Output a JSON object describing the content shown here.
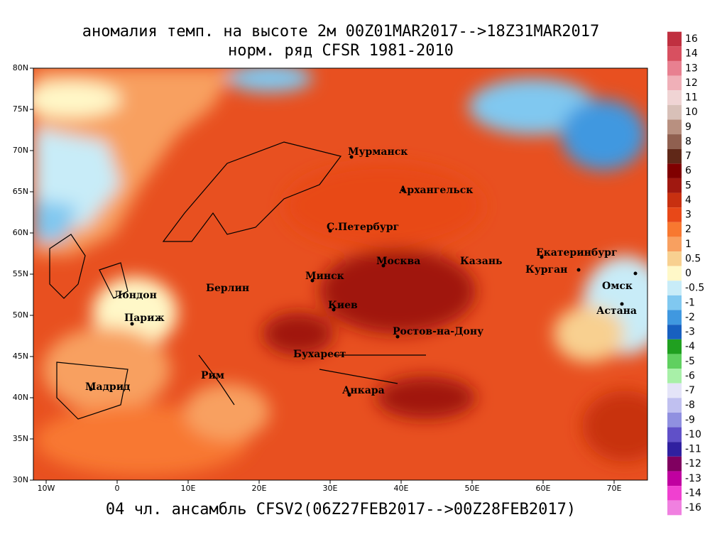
{
  "title": [
    "аномалия темп. на высоте 2м 00Z01MAR2017-->18Z31MAR2017",
    "норм. ряд CFSR 1981-2010"
  ],
  "caption": "04 чл. ансамбль CFSV2(06Z27FEB2017-->00Z28FEB2017)",
  "map": {
    "lat_labels": [
      "80N",
      "75N",
      "70N",
      "65N",
      "60N",
      "55N",
      "50N",
      "45N",
      "40N",
      "35N",
      "30N"
    ],
    "lon_labels": [
      "10W",
      "0",
      "10E",
      "20E",
      "30E",
      "40E",
      "50E",
      "60E",
      "70E"
    ],
    "cities": [
      {
        "name": "Мурманск"
      },
      {
        "name": "Архангельск"
      },
      {
        "name": "С.Петербург"
      },
      {
        "name": "Москва"
      },
      {
        "name": "Казань"
      },
      {
        "name": "Екатеринбург"
      },
      {
        "name": "Курган"
      },
      {
        "name": "Омск"
      },
      {
        "name": "Астана"
      },
      {
        "name": "Минск"
      },
      {
        "name": "Берлин"
      },
      {
        "name": "Лондон"
      },
      {
        "name": "Париж"
      },
      {
        "name": "Киев"
      },
      {
        "name": "Ростов-на-Дону"
      },
      {
        "name": "Бухарест"
      },
      {
        "name": "Рим"
      },
      {
        "name": "Мадрид"
      },
      {
        "name": "Анкара"
      }
    ]
  },
  "colorbar": {
    "labels": [
      "16",
      "14",
      "13",
      "12",
      "11",
      "10",
      "9",
      "8",
      "7",
      "6",
      "5",
      "4",
      "3",
      "2",
      "1",
      "0.5",
      "0",
      "-0.5",
      "-1",
      "-2",
      "-3",
      "-4",
      "-5",
      "-6",
      "-7",
      "-8",
      "-9",
      "-10",
      "-11",
      "-12",
      "-13",
      "-14",
      "-16"
    ],
    "colors": [
      "#c03040",
      "#d85060",
      "#e88090",
      "#f0b0b8",
      "#f0d4d4",
      "#d8c0b8",
      "#b89080",
      "#906050",
      "#602818",
      "#800000",
      "#a01810",
      "#c83010",
      "#e84818",
      "#f87830",
      "#f8a060",
      "#f8d090",
      "#fff8c8",
      "#c8ecf8",
      "#80c8f0",
      "#4098e0",
      "#1860c0",
      "#20a020",
      "#60d060",
      "#a8f0a8",
      "#e4e4f8",
      "#c0c0f0",
      "#9090e0",
      "#6050c8",
      "#3020a0",
      "#800060",
      "#c000a0",
      "#f040d0",
      "#f080e0"
    ]
  }
}
